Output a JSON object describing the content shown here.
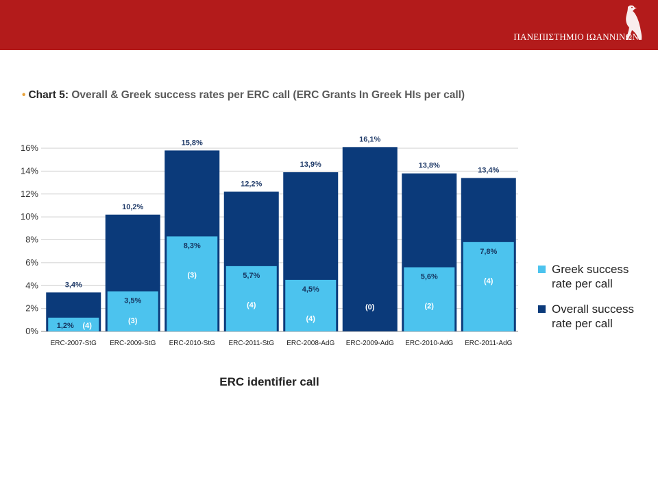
{
  "header": {
    "university": "ΠΑΝΕΠΙΣΤΗΜΙΟ ΙΩΑΝΝΙΝΩΝ",
    "color": "#b31b1b"
  },
  "chart_title": {
    "bullet": "•",
    "prefix": "Chart 5:",
    "text": "Overall & Greek success rates per ERC call (ERC Grants In Greek HIs per call)"
  },
  "chart_data": {
    "type": "bar",
    "categories": [
      "ERC-2007-StG",
      "ERC-2009-StG",
      "ERC-2010-StG",
      "ERC-2011-StG",
      "ERC-2008-AdG",
      "ERC-2009-AdG",
      "ERC-2010-AdG",
      "ERC-2011-AdG"
    ],
    "series": [
      {
        "name": "Overall success rate per call",
        "color": "#0b3a7a",
        "values": [
          3.4,
          10.2,
          15.8,
          12.2,
          13.9,
          16.1,
          13.8,
          13.4
        ],
        "labels": [
          "3,4%",
          "10,2%",
          "15,8%",
          "12,2%",
          "13,9%",
          "16,1%",
          "13,8%",
          "13,4%"
        ]
      },
      {
        "name": "Greek success rate per call",
        "color": "#4cc3ee",
        "values": [
          1.2,
          3.5,
          8.3,
          5.7,
          4.5,
          0,
          5.6,
          7.8
        ],
        "labels": [
          "1,2%",
          "3,5%",
          "8,3%",
          "5,7%",
          "4,5%",
          "",
          "5,6%",
          "7,8%"
        ]
      }
    ],
    "greek_grant_counts": [
      "(4)",
      "(3)",
      "(3)",
      "(4)",
      "(4)",
      "(0)",
      "(2)",
      "(4)"
    ],
    "ylim": [
      0,
      16
    ],
    "yticks": [
      "0%",
      "2%",
      "4%",
      "6%",
      "8%",
      "10%",
      "12%",
      "14%",
      "16%"
    ],
    "xlabel": "ERC identifier call",
    "ylabel": "",
    "grid": true,
    "legend": "right",
    "overlay": true
  }
}
